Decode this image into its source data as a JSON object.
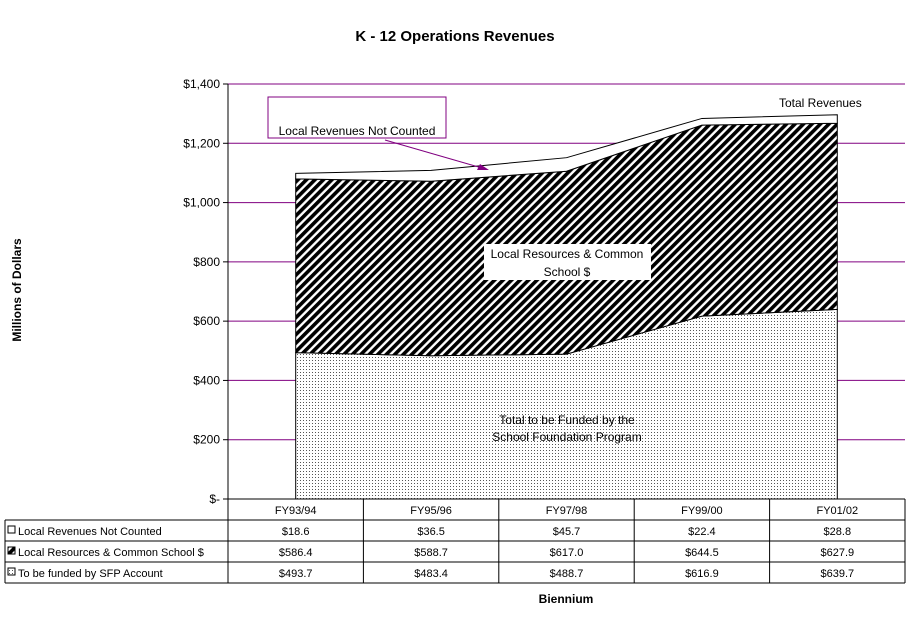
{
  "chart_data": {
    "type": "area",
    "stacked": true,
    "title": "K - 12 Operations Revenues",
    "ylabel": "Millions of Dollars",
    "xlabel": "Biennium",
    "ylim": [
      0,
      1400
    ],
    "yticks": [
      {
        "value": 0,
        "label": "$-"
      },
      {
        "value": 200,
        "label": "$200"
      },
      {
        "value": 400,
        "label": "$400"
      },
      {
        "value": 600,
        "label": "$600"
      },
      {
        "value": 800,
        "label": "$800"
      },
      {
        "value": 1000,
        "label": "$1,000"
      },
      {
        "value": 1200,
        "label": "$1,200"
      },
      {
        "value": 1400,
        "label": "$1,400"
      }
    ],
    "categories": [
      "FY93/94",
      "FY95/96",
      "FY97/98",
      "FY99/00",
      "FY01/02"
    ],
    "series": [
      {
        "name": "To be funded by SFP Account",
        "values": [
          493.7,
          483.4,
          488.7,
          616.9,
          639.7
        ],
        "labels": [
          "$493.7",
          "$483.4",
          "$488.7",
          "$616.9",
          "$639.7"
        ]
      },
      {
        "name": "Local Resources & Common School $",
        "values": [
          586.4,
          588.7,
          617.0,
          644.5,
          627.9
        ],
        "labels": [
          "$586.4",
          "$588.7",
          "$617.0",
          "$644.5",
          "$627.9"
        ]
      },
      {
        "name": "Local Revenues Not Counted",
        "values": [
          18.6,
          36.5,
          45.7,
          22.4,
          28.8
        ],
        "labels": [
          "$18.6",
          "$36.5",
          "$45.7",
          "$22.4",
          "$28.8"
        ]
      }
    ],
    "table_rows_order": [
      2,
      1,
      0
    ],
    "grid": true,
    "annotations": {
      "total": "Total  Revenues",
      "not_counted": "Local Revenues Not Counted",
      "local_line1": "Local Resources & Common",
      "local_line2": "School $",
      "sfp_line1": "Total to be Funded by the",
      "sfp_line2": "School Foundation Program"
    },
    "colors": {
      "gridline": "#800080",
      "arrow": "#800080"
    }
  }
}
